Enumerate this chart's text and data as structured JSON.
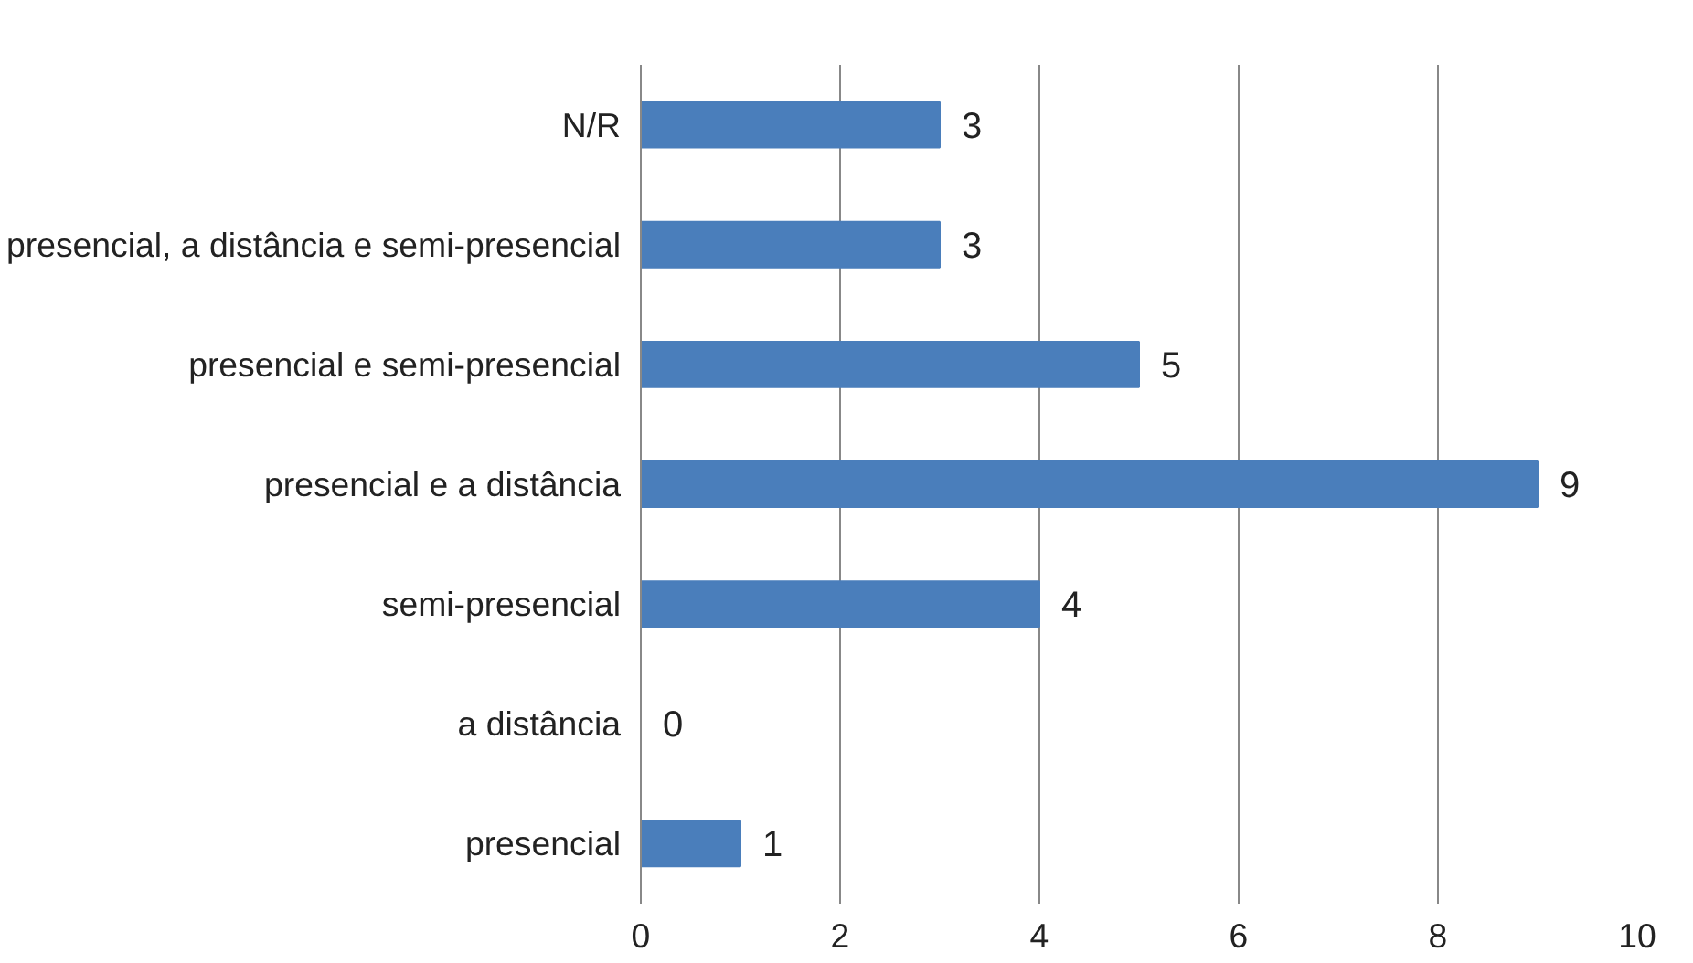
{
  "chart_data": {
    "type": "bar",
    "orientation": "horizontal",
    "categories": [
      "N/R",
      "presencial, a distância e semi-presencial",
      "presencial e semi-presencial",
      "presencial e a distância",
      "semi-presencial",
      "a distância",
      "presencial"
    ],
    "values": [
      3,
      3,
      5,
      9,
      4,
      0,
      1
    ],
    "color": "#4a7ebb",
    "xlim": [
      0,
      10
    ],
    "xticks": [
      0,
      2,
      4,
      6,
      8,
      10
    ],
    "grid": "x",
    "data_labels": true
  }
}
